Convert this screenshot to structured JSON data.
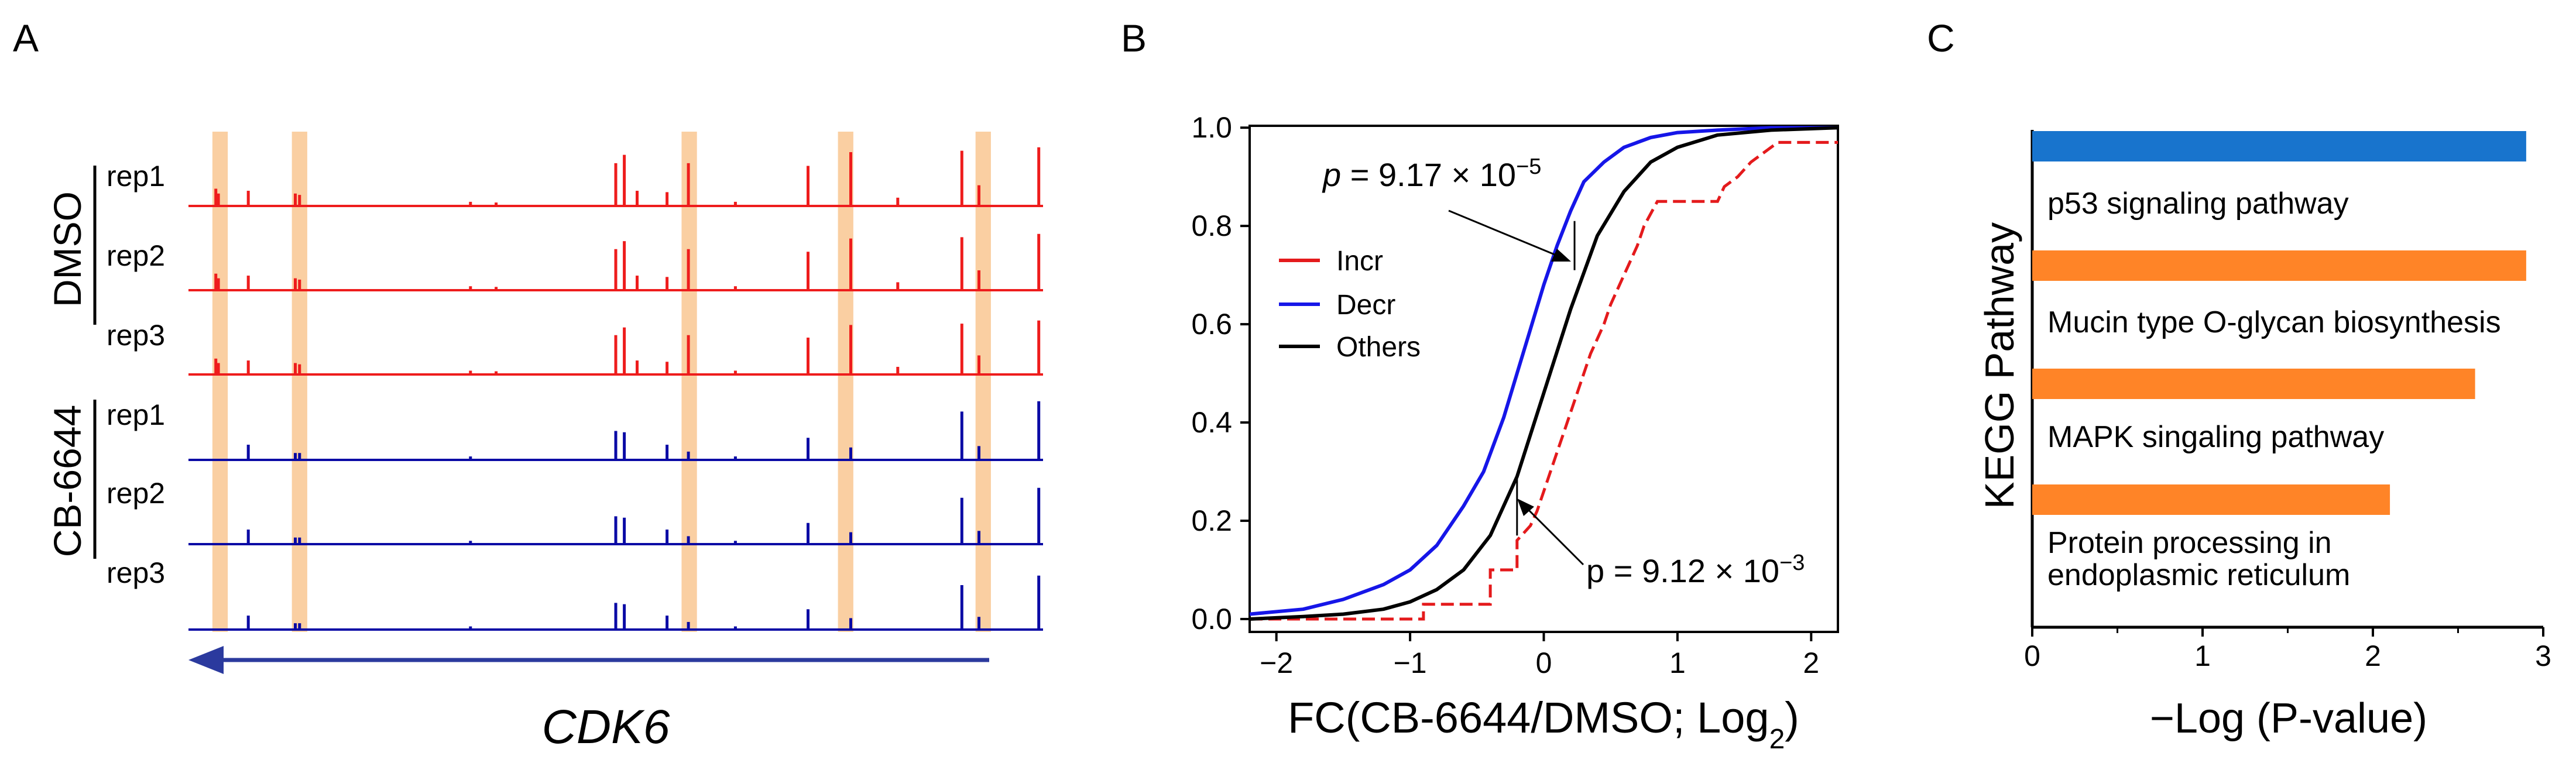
{
  "colors": {
    "dmso_track": "#ee1c1c",
    "cb_track": "#0a0aa5",
    "highlight": "#f9c792",
    "incr": "#e41a1c",
    "decr": "#1616e8",
    "others": "#000000",
    "kegg_top": "#1874cd",
    "kegg_rest": "#ff8427",
    "arrow": "#2b3a9e"
  },
  "panelA": {
    "letter": "A",
    "groups": [
      {
        "name": "DMSO",
        "color_key": "dmso_track",
        "reps": [
          "rep1",
          "rep2",
          "rep3"
        ]
      },
      {
        "name": "CB-6644",
        "color_key": "cb_track",
        "reps": [
          "rep1",
          "rep2",
          "rep3"
        ]
      }
    ],
    "gene": "CDK6",
    "gene_strand": "minus",
    "chart_data": {
      "type": "genome_tracks",
      "highlight_fraction_ranges": [
        [
          0.028,
          0.046
        ],
        [
          0.121,
          0.139
        ],
        [
          0.577,
          0.595
        ],
        [
          0.76,
          0.778
        ],
        [
          0.921,
          0.939
        ]
      ],
      "dmso_peaks": [
        {
          "pos": 0.032,
          "h": 0.25
        },
        {
          "pos": 0.035,
          "h": 0.18
        },
        {
          "pos": 0.07,
          "h": 0.22
        },
        {
          "pos": 0.125,
          "h": 0.18
        },
        {
          "pos": 0.13,
          "h": 0.16
        },
        {
          "pos": 0.5,
          "h": 0.62
        },
        {
          "pos": 0.51,
          "h": 0.74
        },
        {
          "pos": 0.525,
          "h": 0.22
        },
        {
          "pos": 0.56,
          "h": 0.2
        },
        {
          "pos": 0.585,
          "h": 0.62
        },
        {
          "pos": 0.725,
          "h": 0.58
        },
        {
          "pos": 0.775,
          "h": 0.78
        },
        {
          "pos": 0.83,
          "h": 0.12
        },
        {
          "pos": 0.905,
          "h": 0.8
        },
        {
          "pos": 0.925,
          "h": 0.3
        },
        {
          "pos": 0.995,
          "h": 0.85
        },
        {
          "pos": 0.33,
          "h": 0.06
        },
        {
          "pos": 0.36,
          "h": 0.05
        },
        {
          "pos": 0.64,
          "h": 0.06
        }
      ],
      "cb_peaks": [
        {
          "pos": 0.07,
          "h": 0.22
        },
        {
          "pos": 0.125,
          "h": 0.1
        },
        {
          "pos": 0.13,
          "h": 0.1
        },
        {
          "pos": 0.5,
          "h": 0.42
        },
        {
          "pos": 0.51,
          "h": 0.4
        },
        {
          "pos": 0.56,
          "h": 0.22
        },
        {
          "pos": 0.585,
          "h": 0.12
        },
        {
          "pos": 0.725,
          "h": 0.32
        },
        {
          "pos": 0.775,
          "h": 0.18
        },
        {
          "pos": 0.905,
          "h": 0.7
        },
        {
          "pos": 0.925,
          "h": 0.2
        },
        {
          "pos": 0.995,
          "h": 0.85
        },
        {
          "pos": 0.33,
          "h": 0.05
        },
        {
          "pos": 0.64,
          "h": 0.05
        }
      ]
    }
  },
  "panelB": {
    "letter": "B",
    "xlabel_main": "FC(CB-6644/DMSO; Log",
    "xlabel_sub": "2",
    "xlabel_tail": ")",
    "annot_top": {
      "p": "p",
      "rest": " = 9.17 × 10",
      "exp": "−5"
    },
    "annot_bottom": {
      "p": "p",
      "rest": " = 9.12 × 10",
      "exp": "−3"
    },
    "chart_data": {
      "type": "line",
      "title": "",
      "xlim": [
        -2.2,
        2.2
      ],
      "ylim": [
        0,
        1.03
      ],
      "xticks": [
        -2,
        -1,
        0,
        1,
        2
      ],
      "xtick_labels": [
        "−2",
        "−1",
        "0",
        "1",
        "2"
      ],
      "yticks": [
        0.0,
        0.2,
        0.4,
        0.6,
        0.8,
        1.0
      ],
      "ytick_labels": [
        "0.0",
        "0.2",
        "0.4",
        "0.6",
        "0.8",
        "1.0"
      ],
      "legend": [
        "Incr",
        "Decr",
        "Others"
      ],
      "legend_position": "center-left",
      "series": [
        {
          "name": "Incr",
          "color_key": "incr",
          "style": "step",
          "x": [
            -2.2,
            -0.9,
            -0.9,
            -0.4,
            -0.4,
            -0.2,
            -0.2,
            -0.1,
            -0.05,
            0.0,
            0.05,
            0.1,
            0.15,
            0.2,
            0.25,
            0.3,
            0.35,
            0.4,
            0.45,
            0.5,
            0.55,
            0.6,
            0.65,
            0.7,
            0.75,
            0.85,
            1.3,
            1.35,
            1.45,
            1.55,
            1.65,
            1.75,
            2.2
          ],
          "y": [
            0.0,
            0.0,
            0.03,
            0.03,
            0.1,
            0.1,
            0.16,
            0.19,
            0.22,
            0.26,
            0.3,
            0.34,
            0.38,
            0.42,
            0.46,
            0.5,
            0.54,
            0.57,
            0.6,
            0.64,
            0.67,
            0.7,
            0.73,
            0.76,
            0.8,
            0.85,
            0.85,
            0.88,
            0.9,
            0.93,
            0.95,
            0.97,
            0.97
          ]
        },
        {
          "name": "Decr",
          "color_key": "decr",
          "style": "line",
          "x": [
            -2.2,
            -1.8,
            -1.5,
            -1.2,
            -1.0,
            -0.8,
            -0.6,
            -0.45,
            -0.3,
            -0.2,
            -0.1,
            0.0,
            0.1,
            0.2,
            0.3,
            0.45,
            0.6,
            0.8,
            1.0,
            1.3,
            1.7,
            2.2
          ],
          "y": [
            0.01,
            0.02,
            0.04,
            0.07,
            0.1,
            0.15,
            0.23,
            0.3,
            0.41,
            0.5,
            0.59,
            0.68,
            0.76,
            0.83,
            0.89,
            0.93,
            0.96,
            0.98,
            0.99,
            0.995,
            1.0,
            1.0
          ]
        },
        {
          "name": "Others",
          "color_key": "others",
          "style": "line",
          "x": [
            -2.2,
            -1.8,
            -1.5,
            -1.2,
            -1.0,
            -0.8,
            -0.6,
            -0.4,
            -0.2,
            0.0,
            0.2,
            0.4,
            0.6,
            0.8,
            1.0,
            1.3,
            1.7,
            2.2
          ],
          "y": [
            0.0,
            0.005,
            0.01,
            0.02,
            0.035,
            0.06,
            0.1,
            0.17,
            0.29,
            0.46,
            0.63,
            0.78,
            0.87,
            0.93,
            0.96,
            0.985,
            0.995,
            1.0
          ]
        }
      ],
      "bracket_top": {
        "x": 0.23,
        "y_low": 0.71,
        "y_high": 0.81
      },
      "bracket_bottom": {
        "x": -0.2,
        "y_low": 0.17,
        "y_high": 0.29
      }
    }
  },
  "panelC": {
    "letter": "C",
    "chart_data": {
      "type": "bar",
      "orientation": "horizontal",
      "title": "",
      "ylabel": "KEGG Pathway",
      "xlabel": "−Log (P-value)",
      "xlim": [
        0,
        3
      ],
      "xticks": [
        0,
        1,
        2,
        3
      ],
      "xtick_labels": [
        "0",
        "1",
        "2",
        "3"
      ],
      "categories": [
        "p53 signaling pathway",
        "Mucin type O-glycan biosynthesis",
        "MAPK singaling pathway",
        "Protein processing in endoplasmic reticulum"
      ],
      "category_lines": [
        [
          "p53 signaling pathway"
        ],
        [
          "Mucin type O-glycan biosynthesis"
        ],
        [
          "MAPK singaling pathway"
        ],
        [
          "Protein processing in",
          "endoplasmic reticulum"
        ]
      ],
      "values": [
        2.9,
        2.9,
        2.6,
        2.1
      ],
      "bar_color_keys": [
        "kegg_top",
        "kegg_rest",
        "kegg_rest",
        "kegg_rest"
      ]
    }
  }
}
